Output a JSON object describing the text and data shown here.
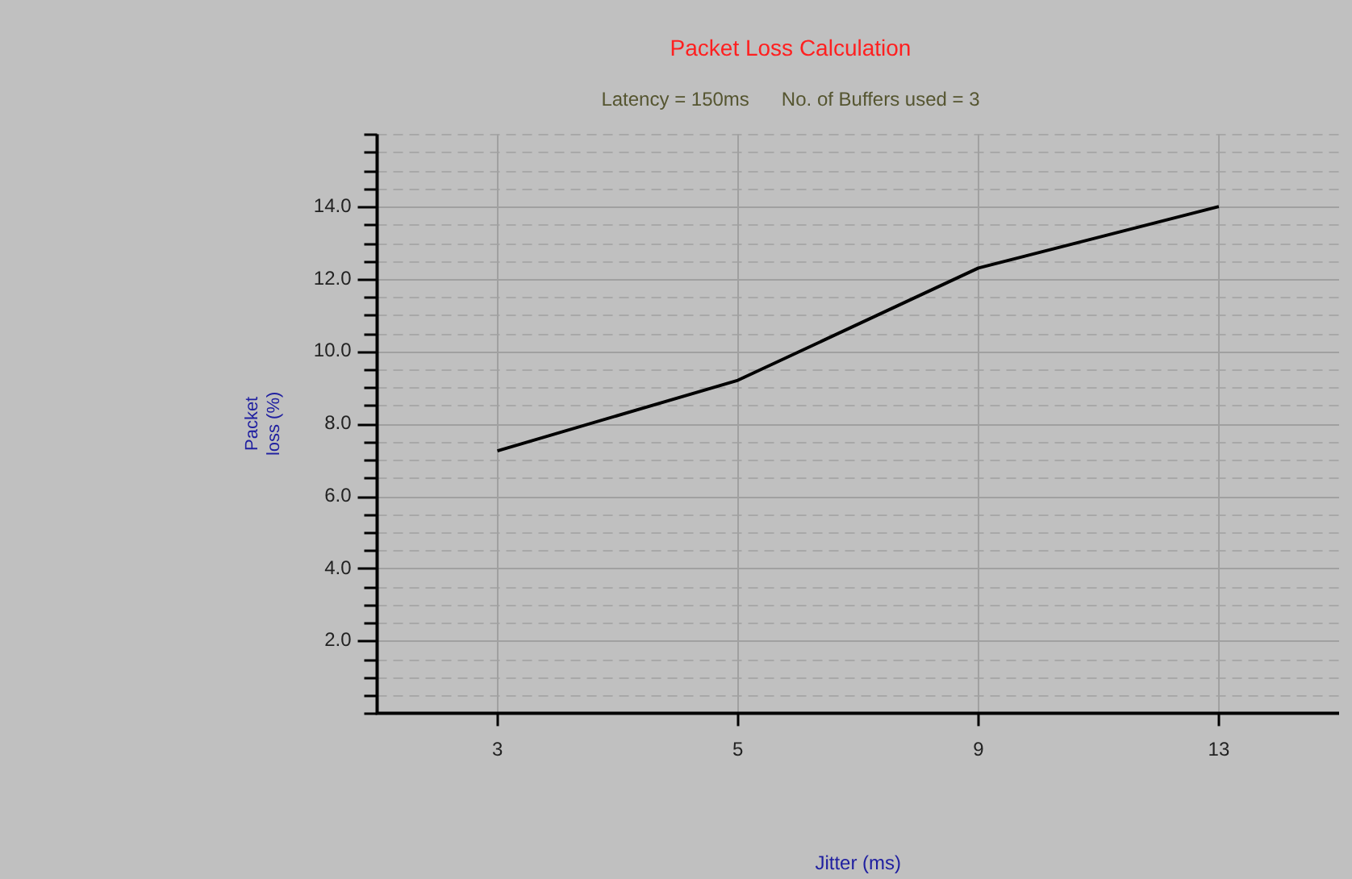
{
  "chart_data": {
    "type": "line",
    "title": "Packet Loss Calculation",
    "subtitle": "Latency = 150ms      No. of Buffers used = 3",
    "xlabel": "Jitter (ms)",
    "ylabel": "Packet loss (%)",
    "categories": [
      "3",
      "5",
      "9",
      "13"
    ],
    "series": [
      {
        "color": "#000000",
        "values": [
          7.25,
          9.2,
          12.3,
          14.0
        ]
      }
    ],
    "ylim": [
      0,
      16
    ],
    "yticks": [
      {
        "value": 0,
        "label": null
      },
      {
        "value": 0.5,
        "label": null
      },
      {
        "value": 1,
        "label": null
      },
      {
        "value": 1.5,
        "label": null
      },
      {
        "value": 2,
        "label": "2.0"
      },
      {
        "value": 2.5,
        "label": null
      },
      {
        "value": 3,
        "label": null
      },
      {
        "value": 3.5,
        "label": null
      },
      {
        "value": 4,
        "label": "4.0"
      },
      {
        "value": 4.5,
        "label": null
      },
      {
        "value": 5,
        "label": null
      },
      {
        "value": 5.5,
        "label": null
      },
      {
        "value": 6,
        "label": "6.0"
      },
      {
        "value": 6.5,
        "label": null
      },
      {
        "value": 7,
        "label": null
      },
      {
        "value": 7.5,
        "label": null
      },
      {
        "value": 8,
        "label": "8.0"
      },
      {
        "value": 8.5,
        "label": null
      },
      {
        "value": 9,
        "label": null
      },
      {
        "value": 9.5,
        "label": null
      },
      {
        "value": 10,
        "label": "10.0"
      },
      {
        "value": 10.5,
        "label": null
      },
      {
        "value": 11,
        "label": null
      },
      {
        "value": 11.5,
        "label": null
      },
      {
        "value": 12,
        "label": "12.0"
      },
      {
        "value": 12.5,
        "label": null
      },
      {
        "value": 13,
        "label": null
      },
      {
        "value": 13.5,
        "label": null
      },
      {
        "value": 14,
        "label": "14.0"
      },
      {
        "value": 14.5,
        "label": null
      },
      {
        "value": 15,
        "label": null
      },
      {
        "value": 15.5,
        "label": null
      },
      {
        "value": 16,
        "label": null
      }
    ],
    "grid": true,
    "legend": false,
    "marker": "none",
    "line_style": "solid"
  }
}
